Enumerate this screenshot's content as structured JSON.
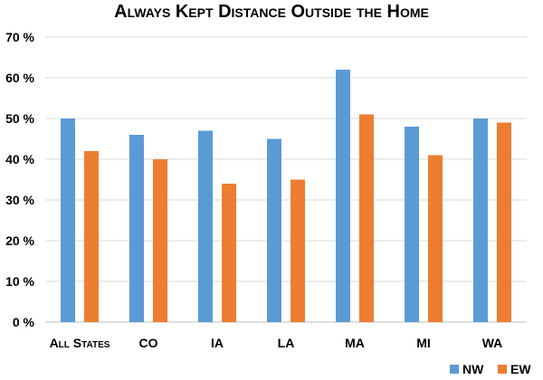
{
  "chart_data": {
    "type": "bar",
    "title": "Always Kept Distance Outside the Home",
    "categories": [
      "All States",
      "CO",
      "IA",
      "LA",
      "MA",
      "MI",
      "WA"
    ],
    "series": [
      {
        "name": "NW",
        "color": "#5B9BD5",
        "values": [
          50,
          46,
          47,
          45,
          62,
          48,
          50
        ]
      },
      {
        "name": "EW",
        "color": "#ED7D31",
        "values": [
          42,
          40,
          34,
          35,
          51,
          41,
          49
        ]
      }
    ],
    "ylim": [
      0,
      70
    ],
    "yticks": [
      0,
      10,
      20,
      30,
      40,
      50,
      60,
      70
    ],
    "ytick_labels": [
      "0 %",
      "10 %",
      "20 %",
      "30 %",
      "40 %",
      "50 %",
      "60 %",
      "70 %"
    ],
    "grid": true,
    "legend": "bottom-right",
    "xlabel": "",
    "ylabel": ""
  }
}
